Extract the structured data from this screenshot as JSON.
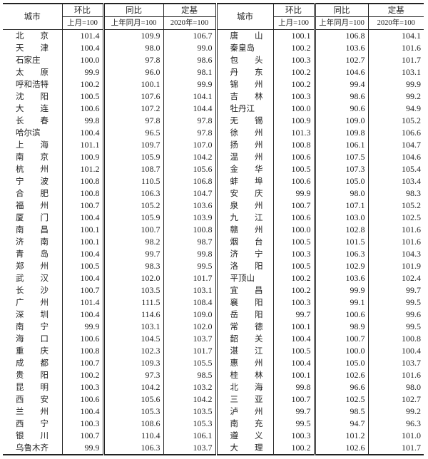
{
  "headers": {
    "city": "城市",
    "mom": "环比",
    "yoy": "同比",
    "base": "定基",
    "mom_sub": "上月=100",
    "yoy_sub": "上年同月=100",
    "base_sub": "2020年=100"
  },
  "left": [
    [
      "北　　京",
      "101.4",
      "109.9",
      "106.7"
    ],
    [
      "天　　津",
      "100.4",
      "98.0",
      "99.0"
    ],
    [
      "石家庄",
      "100.0",
      "97.8",
      "98.6"
    ],
    [
      "太　　原",
      "99.9",
      "96.0",
      "98.1"
    ],
    [
      "呼和浩特",
      "100.2",
      "100.1",
      "99.9"
    ],
    [
      "沈　　阳",
      "100.5",
      "107.6",
      "104.1"
    ],
    [
      "大　　连",
      "100.6",
      "107.2",
      "104.4"
    ],
    [
      "长　　春",
      "99.8",
      "97.8",
      "97.8"
    ],
    [
      "哈尔滨",
      "100.4",
      "96.5",
      "97.8"
    ],
    [
      "上　　海",
      "101.1",
      "109.7",
      "107.0"
    ],
    [
      "南　　京",
      "100.9",
      "105.9",
      "104.2"
    ],
    [
      "杭　　州",
      "101.2",
      "108.7",
      "105.6"
    ],
    [
      "宁　　波",
      "100.8",
      "110.5",
      "106.8"
    ],
    [
      "合　　肥",
      "100.8",
      "106.3",
      "104.7"
    ],
    [
      "福　　州",
      "100.7",
      "105.2",
      "103.6"
    ],
    [
      "厦　　门",
      "100.4",
      "105.9",
      "103.9"
    ],
    [
      "南　　昌",
      "100.1",
      "100.7",
      "100.8"
    ],
    [
      "济　　南",
      "100.1",
      "98.2",
      "98.7"
    ],
    [
      "青　　岛",
      "100.4",
      "99.7",
      "99.8"
    ],
    [
      "郑　　州",
      "100.5",
      "98.3",
      "99.5"
    ],
    [
      "武　　汉",
      "100.4",
      "102.0",
      "101.7"
    ],
    [
      "长　　沙",
      "100.7",
      "103.5",
      "103.1"
    ],
    [
      "广　　州",
      "101.4",
      "111.5",
      "108.4"
    ],
    [
      "深　　圳",
      "100.4",
      "114.6",
      "109.0"
    ],
    [
      "南　　宁",
      "99.9",
      "103.1",
      "102.0"
    ],
    [
      "海　　口",
      "100.6",
      "104.5",
      "103.7"
    ],
    [
      "重　　庆",
      "100.8",
      "102.3",
      "101.7"
    ],
    [
      "成　　都",
      "100.7",
      "109.3",
      "105.5"
    ],
    [
      "贵　　阳",
      "100.2",
      "97.3",
      "98.5"
    ],
    [
      "昆　　明",
      "100.3",
      "104.2",
      "103.2"
    ],
    [
      "西　　安",
      "100.6",
      "105.6",
      "104.2"
    ],
    [
      "兰　　州",
      "100.4",
      "105.3",
      "103.5"
    ],
    [
      "西　　宁",
      "100.3",
      "108.6",
      "105.3"
    ],
    [
      "银　　川",
      "100.7",
      "110.4",
      "106.1"
    ],
    [
      "乌鲁木齐",
      "99.9",
      "106.3",
      "103.7"
    ]
  ],
  "right": [
    [
      "唐　　山",
      "100.1",
      "106.8",
      "104.1"
    ],
    [
      "秦皇岛",
      "100.2",
      "103.6",
      "101.6"
    ],
    [
      "包　　头",
      "100.3",
      "102.7",
      "101.7"
    ],
    [
      "丹　　东",
      "100.2",
      "104.6",
      "103.1"
    ],
    [
      "锦　　州",
      "100.2",
      "99.4",
      "99.9"
    ],
    [
      "吉　　林",
      "100.3",
      "98.6",
      "99.2"
    ],
    [
      "牡丹江",
      "100.0",
      "90.6",
      "94.9"
    ],
    [
      "无　　锡",
      "100.9",
      "109.0",
      "105.2"
    ],
    [
      "徐　　州",
      "101.3",
      "109.8",
      "106.6"
    ],
    [
      "扬　　州",
      "100.8",
      "106.1",
      "104.7"
    ],
    [
      "温　　州",
      "100.6",
      "107.5",
      "104.6"
    ],
    [
      "金　　华",
      "100.5",
      "107.3",
      "105.4"
    ],
    [
      "蚌　　埠",
      "100.6",
      "105.0",
      "103.4"
    ],
    [
      "安　　庆",
      "99.9",
      "98.0",
      "98.3"
    ],
    [
      "泉　　州",
      "100.7",
      "107.1",
      "105.2"
    ],
    [
      "九　　江",
      "100.6",
      "103.0",
      "102.5"
    ],
    [
      "赣　　州",
      "100.0",
      "102.8",
      "101.6"
    ],
    [
      "烟　　台",
      "100.5",
      "101.5",
      "101.6"
    ],
    [
      "济　　宁",
      "100.3",
      "106.3",
      "104.3"
    ],
    [
      "洛　　阳",
      "100.5",
      "102.9",
      "101.9"
    ],
    [
      "平顶山",
      "100.2",
      "103.6",
      "102.4"
    ],
    [
      "宜　　昌",
      "100.2",
      "99.9",
      "99.7"
    ],
    [
      "襄　　阳",
      "100.3",
      "99.1",
      "99.5"
    ],
    [
      "岳　　阳",
      "99.7",
      "100.6",
      "99.6"
    ],
    [
      "常　　德",
      "100.1",
      "98.9",
      "99.5"
    ],
    [
      "韶　　关",
      "100.4",
      "100.7",
      "100.8"
    ],
    [
      "湛　　江",
      "100.5",
      "100.0",
      "100.4"
    ],
    [
      "惠　　州",
      "100.4",
      "105.0",
      "103.7"
    ],
    [
      "桂　　林",
      "100.1",
      "102.6",
      "101.6"
    ],
    [
      "北　　海",
      "99.8",
      "96.6",
      "98.0"
    ],
    [
      "三　　亚",
      "100.7",
      "102.5",
      "102.7"
    ],
    [
      "泸　　州",
      "99.7",
      "98.5",
      "99.2"
    ],
    [
      "南　　充",
      "99.5",
      "94.7",
      "96.3"
    ],
    [
      "遵　　义",
      "100.3",
      "101.2",
      "101.0"
    ],
    [
      "大　　理",
      "100.2",
      "102.6",
      "101.7"
    ]
  ]
}
